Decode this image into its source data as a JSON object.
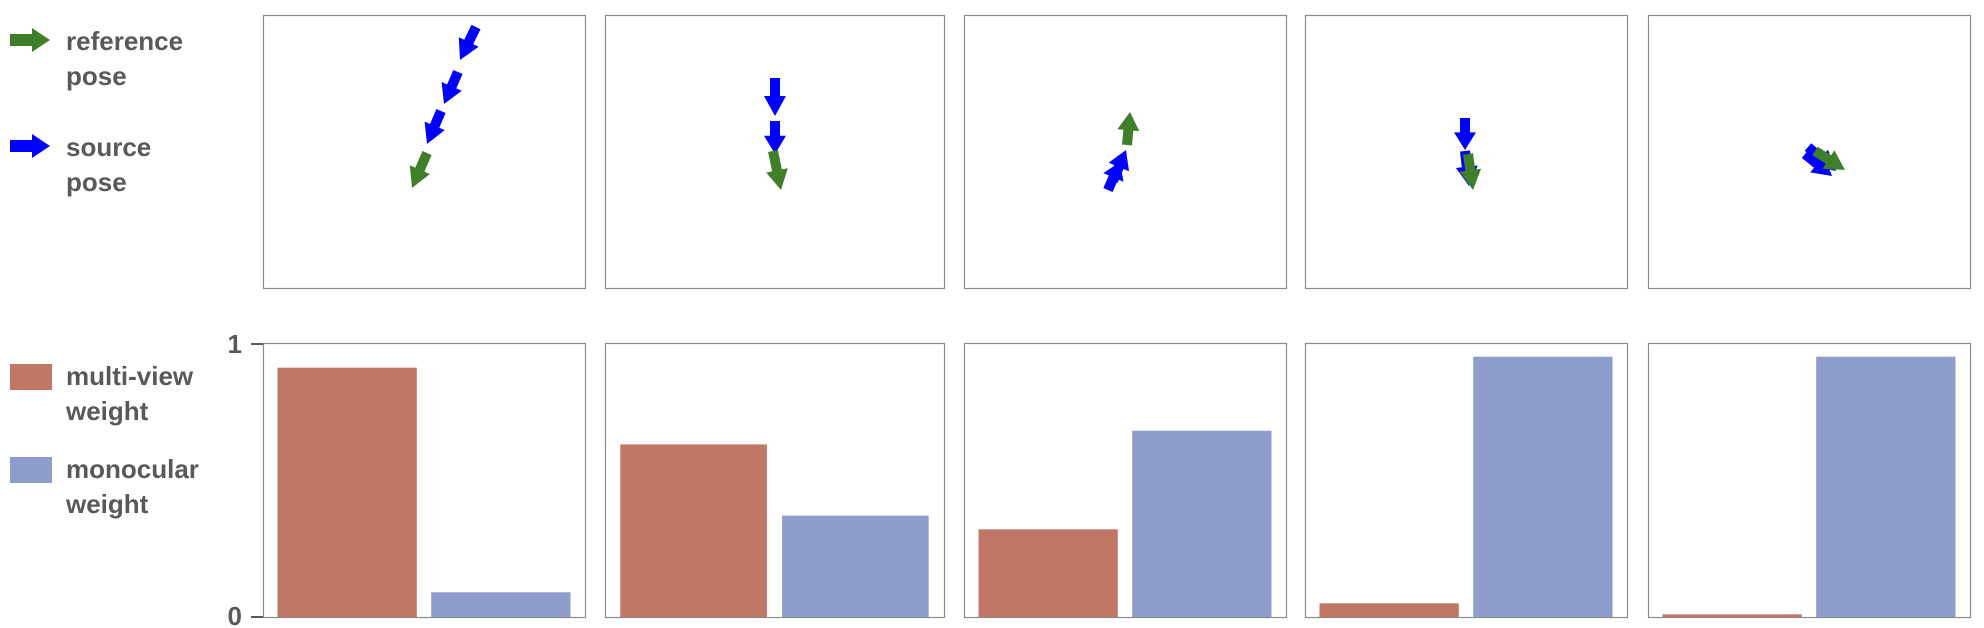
{
  "legend": {
    "top": [
      {
        "label_lines": [
          "reference",
          "pose"
        ],
        "color": "#3F7F2A",
        "icon": "arrow-right-icon"
      },
      {
        "label_lines": [
          "source",
          "pose"
        ],
        "color": "#0000FF",
        "icon": "arrow-right-icon"
      }
    ],
    "bottom": [
      {
        "label_lines": [
          "multi-view",
          "weight"
        ],
        "color": "#C17766",
        "icon": "square-swatch-icon"
      },
      {
        "label_lines": [
          "monocular",
          "weight"
        ],
        "color": "#8E9DCC",
        "icon": "square-swatch-icon"
      }
    ]
  },
  "chart_data": {
    "type": "bar",
    "categories": [
      "multi-view weight",
      "monocular weight"
    ],
    "colors": [
      "#C17766",
      "#8E9DCC"
    ],
    "ylim": [
      0,
      1
    ],
    "y_ticks": [
      "1",
      "0"
    ],
    "panels": [
      {
        "values": [
          0.91,
          0.09
        ]
      },
      {
        "values": [
          0.63,
          0.37
        ]
      },
      {
        "values": [
          0.32,
          0.68
        ]
      },
      {
        "values": [
          0.05,
          0.95
        ]
      },
      {
        "values": [
          0.01,
          0.95
        ]
      }
    ],
    "grid": false
  },
  "pose_panels": {
    "reference_color": "#3F7F2A",
    "source_color": "#0000FF",
    "panels": [
      {
        "reference_count": 1,
        "source_count": 3
      },
      {
        "reference_count": 1,
        "source_count": 2
      },
      {
        "reference_count": 1,
        "source_count": 2
      },
      {
        "reference_count": 1,
        "source_count": 2
      },
      {
        "reference_count": 1,
        "source_count": 2
      }
    ]
  }
}
